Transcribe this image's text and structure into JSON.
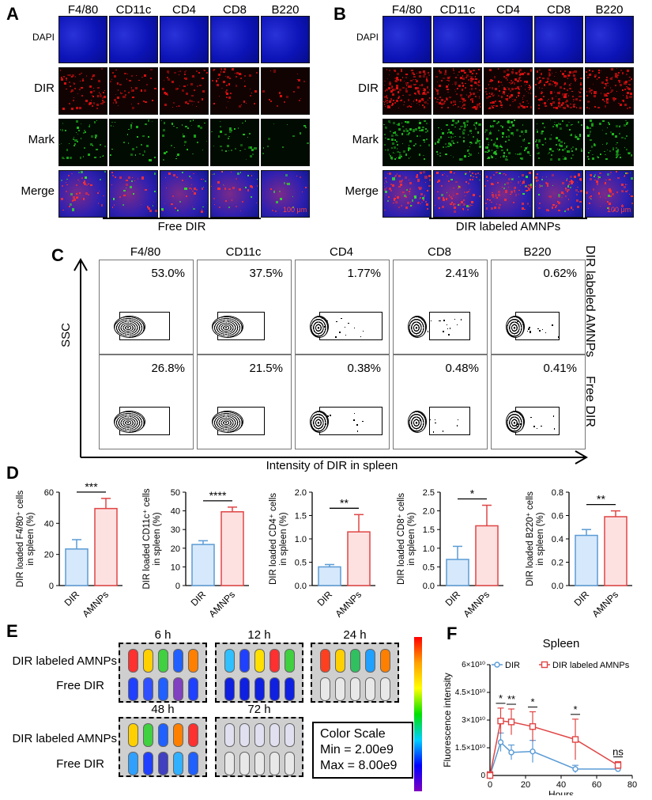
{
  "panels": {
    "A": "A",
    "B": "B",
    "C": "C",
    "D": "D",
    "E": "E",
    "F": "F"
  },
  "panel_a": {
    "columns": [
      "F4/80",
      "CD11c",
      "CD4",
      "CD8",
      "B220"
    ],
    "rows": [
      "DAPI",
      "DIR",
      "Mark",
      "Merge"
    ],
    "scale": "100 μm",
    "group": "Free DIR"
  },
  "panel_b": {
    "columns": [
      "F4/80",
      "CD11c",
      "CD4",
      "CD8",
      "B220"
    ],
    "rows": [
      "DAPI",
      "DIR",
      "Mark",
      "Merge"
    ],
    "scale": "100 μm",
    "group": "DIR labeled AMNPs"
  },
  "panel_c": {
    "columns": [
      "F4/80",
      "CD11c",
      "CD4",
      "CD8",
      "B220"
    ],
    "y_axis": "SSC",
    "x_axis": "Intensity of DIR  in spleen",
    "row_labels": [
      "DIR labeled AMNPs",
      "Free DIR"
    ],
    "amnps_pct": [
      "53.0%",
      "37.5%",
      "1.77%",
      "2.41%",
      "0.62%"
    ],
    "free_pct": [
      "26.8%",
      "21.5%",
      "0.38%",
      "0.48%",
      "0.41%"
    ]
  },
  "panel_e": {
    "times": [
      "6 h",
      "12 h",
      "24 h",
      "48 h",
      "72 h"
    ],
    "row_labels_top": [
      "DIR labeled AMNPs",
      "Free DIR"
    ],
    "row_labels_bottom": [
      "DIR labeled AMNPs",
      "Free DIR"
    ],
    "color_scale_title": "Color Scale",
    "min": "Min   = 2.00e9",
    "max": "Max  = 8.00e9"
  },
  "chart_data": [
    {
      "type": "bar",
      "ylabel": "DIR loaded F4/80⁺ cells in spleen (%)",
      "categories": [
        "DIR",
        "AMNPs"
      ],
      "values": [
        23.5,
        49.5
      ],
      "errors": [
        6,
        6.5
      ],
      "ylim": [
        0,
        60
      ],
      "yticks": [
        "0",
        "20",
        "40",
        "60"
      ],
      "significance": "***"
    },
    {
      "type": "bar",
      "ylabel": "DIR loaded CD11c⁺ cells in spleen (%)",
      "categories": [
        "DIR",
        "AMNPs"
      ],
      "values": [
        22,
        39.5
      ],
      "errors": [
        2,
        2.5
      ],
      "ylim": [
        0,
        50
      ],
      "yticks": [
        "0",
        "10",
        "20",
        "30",
        "40",
        "50"
      ],
      "significance": "****"
    },
    {
      "type": "bar",
      "ylabel": "DIR loaded CD4⁺ cells in spleen (%)",
      "categories": [
        "DIR",
        "AMNPs"
      ],
      "values": [
        0.4,
        1.15
      ],
      "errors": [
        0.05,
        0.37
      ],
      "ylim": [
        0,
        2.0
      ],
      "yticks": [
        "0.0",
        "0.5",
        "1.0",
        "1.5",
        "2.0"
      ],
      "significance": "**"
    },
    {
      "type": "bar",
      "ylabel": "DIR loaded CD8⁺ cells in spleen (%)",
      "categories": [
        "DIR",
        "AMNPs"
      ],
      "values": [
        0.7,
        1.6
      ],
      "errors": [
        0.35,
        0.55
      ],
      "ylim": [
        0,
        2.5
      ],
      "yticks": [
        "0.0",
        "0.5",
        "1.0",
        "1.5",
        "2.0",
        "2.5"
      ],
      "significance": "*"
    },
    {
      "type": "bar",
      "ylabel": "DIR loaded B220⁺ cells in spleen (%)",
      "categories": [
        "DIR",
        "AMNPs"
      ],
      "values": [
        0.43,
        0.59
      ],
      "errors": [
        0.05,
        0.05
      ],
      "ylim": [
        0,
        0.8
      ],
      "yticks": [
        "0.0",
        "0.2",
        "0.4",
        "0.6",
        "0.8"
      ],
      "significance": "**"
    },
    {
      "type": "line",
      "title": "Spleen",
      "xlabel": "Hours",
      "ylabel": "Fluorescence intensity",
      "x": [
        0,
        6,
        12,
        24,
        48,
        72
      ],
      "xticks": [
        "0",
        "20",
        "40",
        "60",
        "80"
      ],
      "xlim": [
        0,
        80
      ],
      "yticks": [
        "0",
        "1.5×10¹⁰",
        "3×10¹⁰",
        "4.5×10¹⁰",
        "6×10¹⁰"
      ],
      "ylim": [
        0,
        60000000000.0
      ],
      "series": [
        {
          "name": "DIR",
          "values": [
            0,
            18000000000.0,
            12500000000.0,
            13000000000.0,
            3500000000.0,
            3500000000.0
          ],
          "errors": [
            2000000000.0,
            5000000000.0,
            4000000000.0,
            6000000000.0,
            2000000000.0,
            1000000000.0
          ],
          "color": "#5b9bd5"
        },
        {
          "name": "DIR labeled AMNPs",
          "values": [
            0,
            29500000000.0,
            29000000000.0,
            26500000000.0,
            19500000000.0,
            5500000000.0
          ],
          "errors": [
            2000000000.0,
            7000000000.0,
            7000000000.0,
            8000000000.0,
            11000000000.0,
            2000000000.0
          ],
          "color": "#e04545"
        }
      ],
      "significance": [
        {
          "x": 6,
          "label": "*"
        },
        {
          "x": 12,
          "label": "**"
        },
        {
          "x": 24,
          "label": "*"
        },
        {
          "x": 48,
          "label": "*"
        },
        {
          "x": 72,
          "label": "ns"
        }
      ]
    }
  ]
}
